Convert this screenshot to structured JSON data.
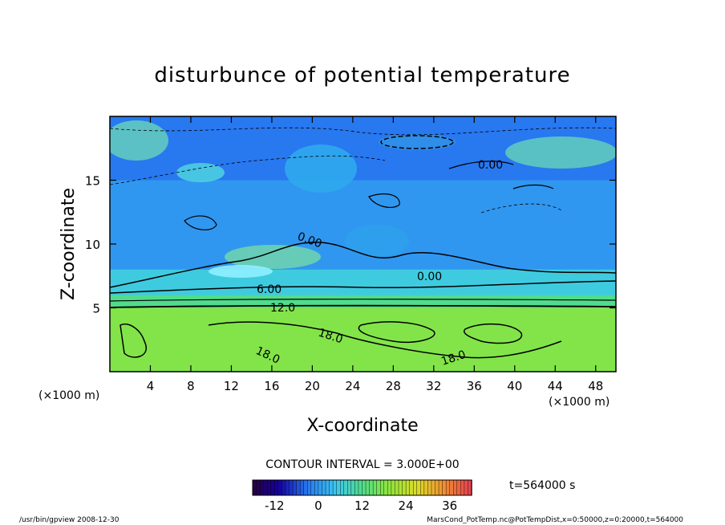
{
  "chart_data": {
    "type": "heatmap",
    "title": "disturbunce of potential temperature",
    "xlabel": "X-coordinate",
    "ylabel": "Z-coordinate",
    "x_unit": "(×1000 m)",
    "y_unit": "(×1000 m)",
    "xlim": [
      0,
      50
    ],
    "ylim": [
      0,
      20
    ],
    "x_ticks": [
      "4",
      "8",
      "12",
      "16",
      "20",
      "24",
      "28",
      "32",
      "36",
      "40",
      "44",
      "48"
    ],
    "y_ticks": [
      "5",
      "10",
      "15"
    ],
    "contour_interval_text": "CONTOUR INTERVAL = 3.000E+00",
    "time_text": "t=564000 s",
    "colorbar": {
      "min": -18,
      "max": 42,
      "ticks": [
        "-12",
        "0",
        "12",
        "24",
        "36"
      ]
    },
    "contour_labels": [
      "0.00",
      "0.00",
      "0.00",
      "6.00",
      "12.0",
      "18.0",
      "18.0",
      "18.0"
    ],
    "layers": [
      {
        "z_range": [
          0,
          5
        ],
        "value": 18
      },
      {
        "z_range": [
          5,
          6
        ],
        "value": 12
      },
      {
        "z_range": [
          6,
          8
        ],
        "value": 6
      },
      {
        "z_range": [
          8,
          15
        ],
        "value": 0
      },
      {
        "z_range": [
          15,
          20
        ],
        "value": -3
      }
    ]
  },
  "footer": {
    "left": "/usr/bin/gpview   2008-12-30",
    "right": "MarsCond_PotTemp.nc@PotTempDist,x=0:50000,z=0:20000,t=564000"
  }
}
